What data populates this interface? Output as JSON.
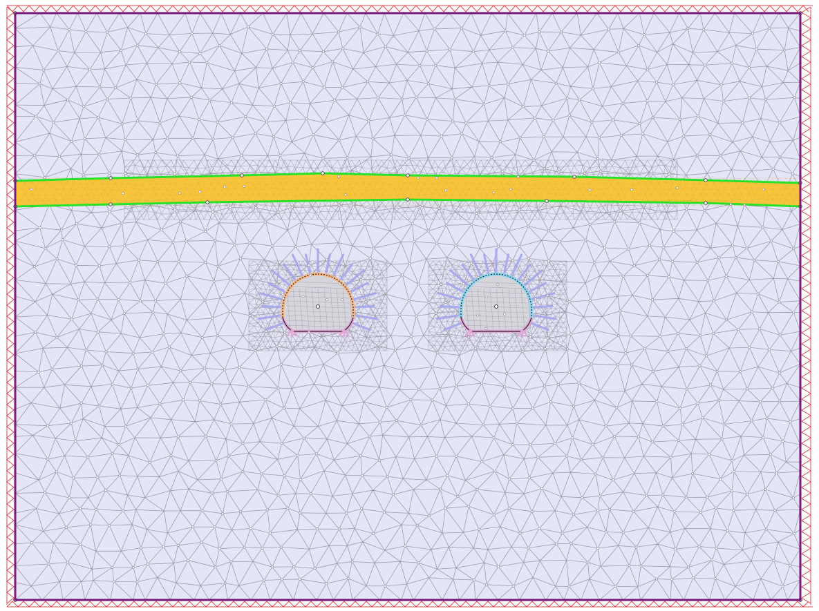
{
  "colors": {
    "background": "#ffffff",
    "domain_fill": "#e4e6f8",
    "domain_border": "#7a1a78",
    "mesh_line": "#9c9aa6",
    "mesh_node": "#ffffff",
    "support": "#e0474d",
    "layer_fill": "#f9c53a",
    "layer_border": "#27e12a",
    "bolt": "#a4a6ee",
    "tunnel_left_lining": "#f3b98c",
    "tunnel_right_lining": "#8fd7ee",
    "invert_lining": "#e2a6d8",
    "tunnel_outline": "#222222"
  },
  "model": {
    "external_boundary": "domain-boundary",
    "boundary_supports": "pinned-supports",
    "material_layers": [
      "stiff-layer"
    ],
    "excavations": [
      {
        "name": "left-tunnel",
        "shape": "horseshoe",
        "rock_bolts": 19
      },
      {
        "name": "right-tunnel",
        "shape": "horseshoe",
        "rock_bolts": 19
      }
    ],
    "mesh": "triangular"
  }
}
